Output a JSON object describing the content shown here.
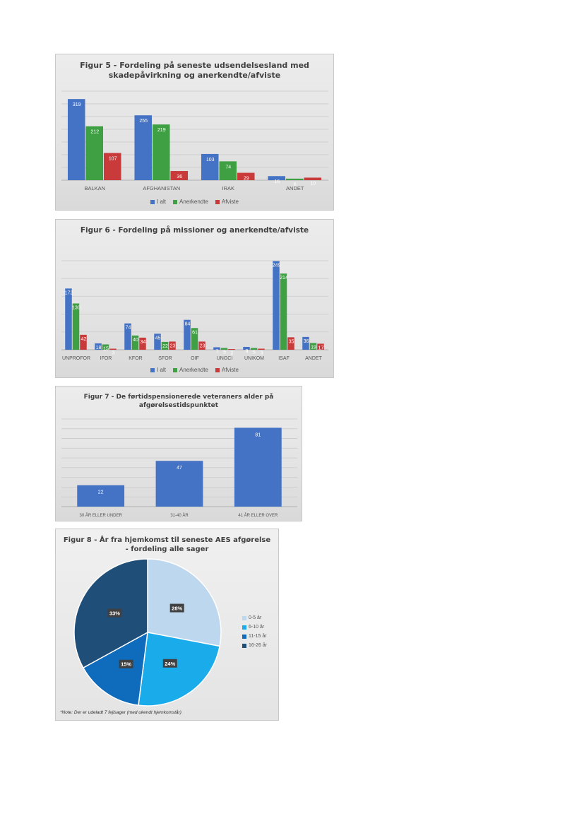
{
  "chart_data": [
    {
      "type": "bar",
      "title": "Figur 5 - Fordeling på seneste udsendelsesland med skadepåvirkning og anerkendte/afviste",
      "title_lines": [
        "Figur 5 - Fordeling på seneste udsendelsesland med",
        "skadepåvirkning og anerkendte/afviste"
      ],
      "categories": [
        "BALKAN",
        "AFGHANISTAN",
        "IRAK",
        "ANDET"
      ],
      "series": [
        {
          "name": "I alt",
          "values": [
            319,
            255,
            103,
            16
          ],
          "color": "#4472c4"
        },
        {
          "name": "Anerkendte",
          "values": [
            212,
            219,
            74,
            6
          ],
          "color": "#3ea043"
        },
        {
          "name": "Afviste",
          "values": [
            107,
            36,
            29,
            10
          ],
          "color": "#c93b3b"
        }
      ],
      "ylim": [
        0,
        350
      ],
      "grid": true,
      "legend": "bottom"
    },
    {
      "type": "bar",
      "title": "Figur 6 - Fordeling på missioner og anerkendte/afviste",
      "categories": [
        "UNPROFOR",
        "IFOR",
        "KFOR",
        "SFOR",
        "OIF",
        "UNGCI",
        "UNIKOM",
        "ISAF",
        "ANDET"
      ],
      "series": [
        {
          "name": "I alt",
          "values": [
            172,
            18,
            74,
            45,
            84,
            7,
            8,
            249,
            36
          ],
          "color": "#4472c4"
        },
        {
          "name": "Anerkendte",
          "values": [
            130,
            15,
            40,
            22,
            61,
            5,
            5,
            214,
            19
          ],
          "color": "#3ea043"
        },
        {
          "name": "Afviste",
          "values": [
            42,
            3,
            34,
            23,
            23,
            2,
            3,
            35,
            17
          ],
          "color": "#c93b3b"
        }
      ],
      "ylim": [
        0,
        250
      ],
      "grid": true,
      "legend": "bottom"
    },
    {
      "type": "bar",
      "title": "Figur 7 - De førtidspensionerede veteraners alder på afgørelsestidspunktet",
      "title_lines": [
        "Figur 7 - De førtidspensionerede veteraners alder på",
        "afgørelsestidspunktet"
      ],
      "categories": [
        "30 ÅR ELLER UNDER",
        "31-40 ÅR",
        "41 ÅR ELLER OVER"
      ],
      "values": [
        22,
        47,
        81
      ],
      "color": "#4472c4",
      "ylim": [
        0,
        90
      ],
      "grid": true
    },
    {
      "type": "pie",
      "title": "Figur 8 - År fra hjemkomst til seneste AES afgørelse - fordeling alle sager",
      "title_lines": [
        "Figur 8 - År fra hjemkomst til seneste AES afgørelse",
        "- fordeling alle sager"
      ],
      "slices": [
        {
          "label": "0-5 år",
          "value": 28,
          "display": "28%",
          "color": "#bdd7ee"
        },
        {
          "label": "6-10 år",
          "value": 24,
          "display": "24%",
          "color": "#1aabeb"
        },
        {
          "label": "11-15 år",
          "value": 15,
          "display": "15%",
          "color": "#0f6bbb"
        },
        {
          "label": "16-26 år",
          "value": 33,
          "display": "33%",
          "color": "#1f4e79"
        }
      ],
      "legend": "right",
      "note": "*Note: Der er udeladt 7 fejlsager (med ukendt hjemkomstår)"
    }
  ]
}
